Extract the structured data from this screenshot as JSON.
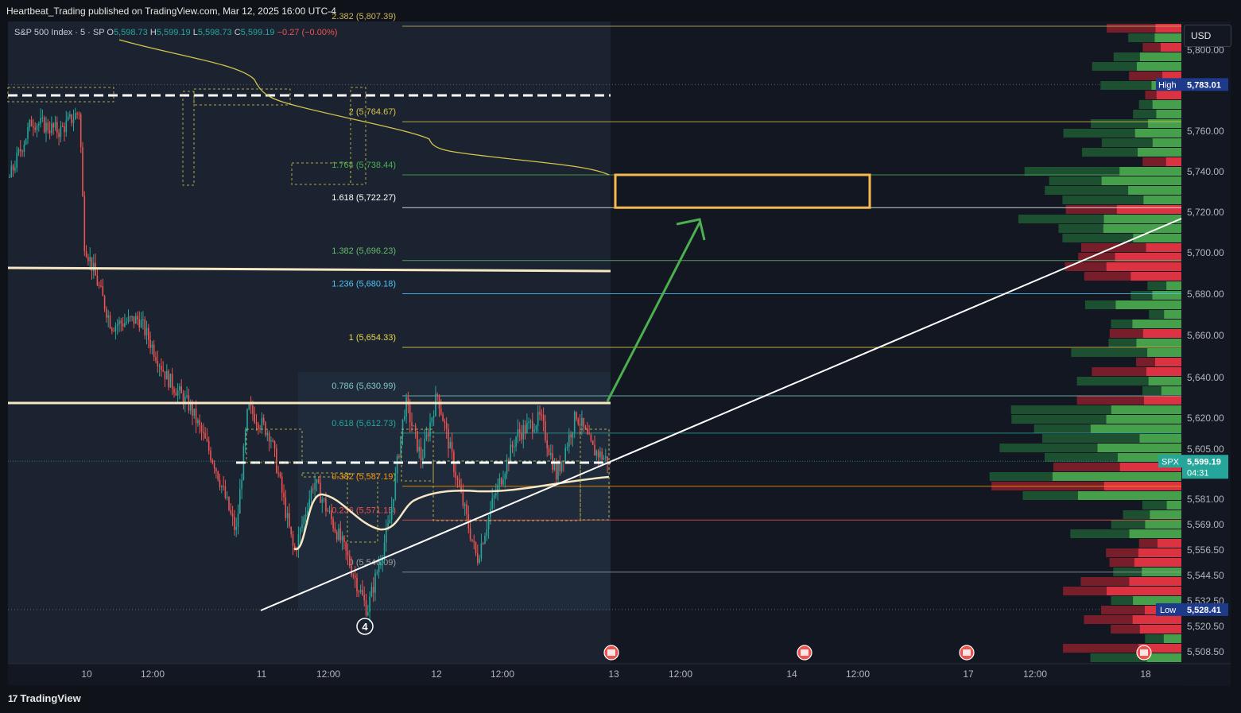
{
  "header": {
    "published": "Heartbeat_Trading published on TradingView.com, Mar 12, 2025 16:00 UTC-4"
  },
  "legend": {
    "symbol": "S&P 500 Index · 5 · SP",
    "o_label": "O",
    "o": "5,598.73",
    "h_label": "H",
    "h": "5,599.19",
    "l_label": "L",
    "l": "5,598.73",
    "c_label": "C",
    "c": "5,599.19",
    "change": "−0.27 (−0.00%)"
  },
  "currency_button": "USD",
  "footer": {
    "brand": "TradingView"
  },
  "colors": {
    "background": "#131722",
    "bull": "#26a69a",
    "bear": "#ef5350",
    "fib": "#c8b560",
    "target_box": "#f5b94f",
    "arrow": "#4caf50",
    "trendline": "#ffffff"
  },
  "chart_data": {
    "type": "candlestick",
    "symbol": "SPX",
    "timeframe": "5",
    "ylim": [
      5500,
      5825
    ],
    "y_ticks": [
      "5,800.00",
      "5,760.00",
      "5,740.00",
      "5,720.00",
      "5,700.00",
      "5,680.00",
      "5,660.00",
      "5,640.00",
      "5,620.00",
      "5,605.00",
      "5,581.00",
      "5,569.00",
      "5,556.50",
      "5,544.50",
      "5,532.50",
      "5,520.50",
      "5,508.50"
    ],
    "x_ticks": [
      "10",
      "12:00",
      "11",
      "12:00",
      "12",
      "12:00",
      "13",
      "12:00",
      "14",
      "12:00",
      "17",
      "12:00",
      "18"
    ],
    "high": {
      "label": "High",
      "value": "5,783.01"
    },
    "low": {
      "label": "Low",
      "value": "5,528.41"
    },
    "last": {
      "label": "SPX",
      "value": "5,599.19",
      "countdown": "04:31"
    },
    "fib_levels": [
      {
        "label": "2.382 (5,807.39)",
        "value": 5807.39,
        "color": "#c8b560"
      },
      {
        "label": "2 (5,764.67)",
        "value": 5764.67,
        "color": "#d6c54c"
      },
      {
        "label": "1.764 (5,738.44)",
        "value": 5738.44,
        "color": "#4caf50"
      },
      {
        "label": "1.618 (5,722.27)",
        "value": 5722.27,
        "color": "#ffffff"
      },
      {
        "label": "1.382 (5,696.23)",
        "value": 5696.23,
        "color": "#66bb6a"
      },
      {
        "label": "1.236 (5,680.18)",
        "value": 5680.18,
        "color": "#4fc3f7"
      },
      {
        "label": "1 (5,654.33)",
        "value": 5654.33,
        "color": "#e6d74c"
      },
      {
        "label": "0.786 (5,630.99)",
        "value": 5630.99,
        "color": "#80cbc4"
      },
      {
        "label": "0.618 (5,612.73)",
        "value": 5612.73,
        "color": "#26a69a"
      },
      {
        "label": "0.382 (5,587.19)",
        "value": 5587.19,
        "color": "#ff9800"
      },
      {
        "label": "0.236 (5,571.15)",
        "value": 5571.15,
        "color": "#ef5350"
      },
      {
        "label": "0 (5,546.09)",
        "value": 5546.09,
        "color": "#9e9e9e"
      }
    ],
    "target_zone": [
      5722.27,
      5738.44
    ],
    "wave_label": "4",
    "horizontal_levels": [
      5693,
      5629,
      5599,
      5777
    ]
  }
}
